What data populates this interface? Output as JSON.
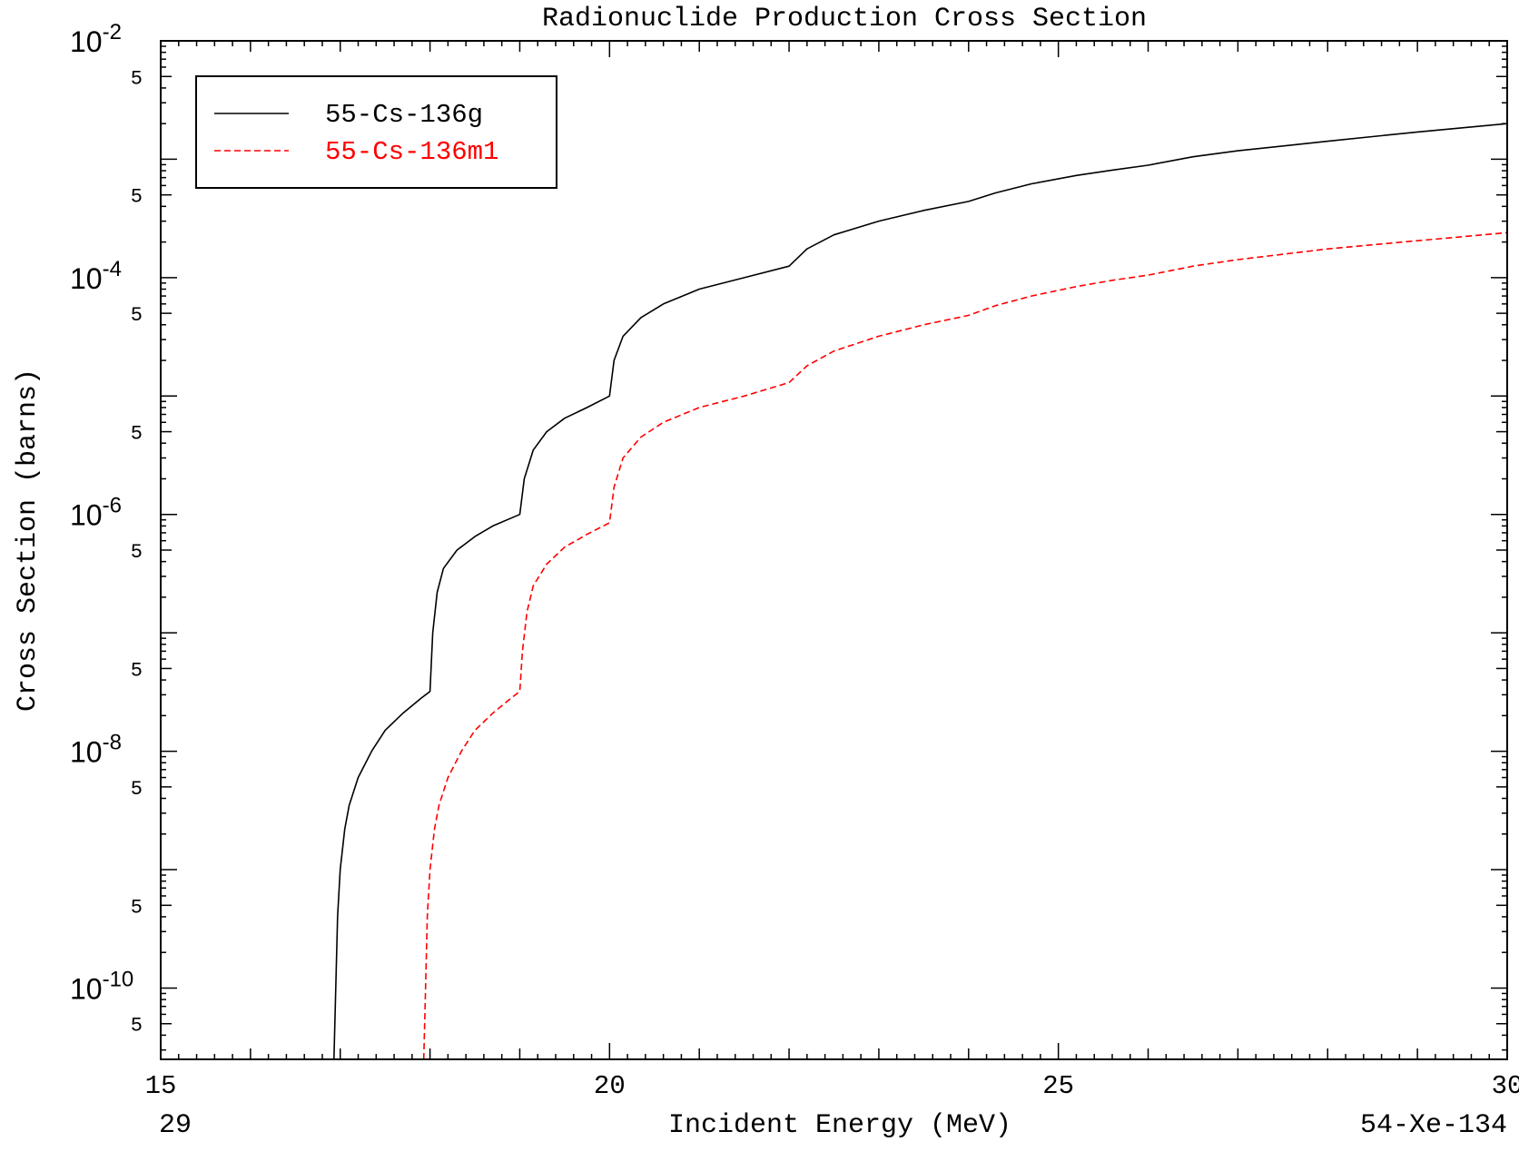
{
  "chart_data": {
    "type": "line",
    "title": "Radionuclide Production Cross Section",
    "xlabel": "Incident Energy (MeV)",
    "ylabel": "Cross Section (barns)",
    "footer_left": "29",
    "footer_right": "54-Xe-134",
    "xlim": [
      15,
      30
    ],
    "ylim": [
      2.5e-11,
      0.01
    ],
    "yscale": "log",
    "x_ticks": [
      {
        "value": 15,
        "label": "15"
      },
      {
        "value": 20,
        "label": "20"
      },
      {
        "value": 25,
        "label": "25"
      },
      {
        "value": 30,
        "label": "30"
      }
    ],
    "y_decades": [
      {
        "value": 1e-10,
        "base": "10",
        "exp": "-10"
      },
      {
        "value": 1e-08,
        "base": "10",
        "exp": "-8"
      },
      {
        "value": 1e-06,
        "base": "10",
        "exp": "-6"
      },
      {
        "value": 0.0001,
        "base": "10",
        "exp": "-4"
      },
      {
        "value": 0.01,
        "base": "10",
        "exp": "-2"
      }
    ],
    "y_minor_label": "5",
    "legend": {
      "placement": "top-left"
    },
    "series": [
      {
        "name": "55-Cs-136g",
        "color": "#000000",
        "dash": "solid",
        "points": [
          [
            16.93,
            2.5e-11
          ],
          [
            16.95,
            1e-10
          ],
          [
            16.97,
            4e-10
          ],
          [
            17.0,
            1e-09
          ],
          [
            17.05,
            2.2e-09
          ],
          [
            17.1,
            3.5e-09
          ],
          [
            17.2,
            6e-09
          ],
          [
            17.35,
            1e-08
          ],
          [
            17.5,
            1.5e-08
          ],
          [
            17.7,
            2.1e-08
          ],
          [
            17.9,
            2.8e-08
          ],
          [
            18.0,
            3.2e-08
          ],
          [
            18.03,
            1e-07
          ],
          [
            18.08,
            2.2e-07
          ],
          [
            18.15,
            3.5e-07
          ],
          [
            18.3,
            5e-07
          ],
          [
            18.5,
            6.5e-07
          ],
          [
            18.7,
            8e-07
          ],
          [
            19.0,
            1e-06
          ],
          [
            19.05,
            2e-06
          ],
          [
            19.15,
            3.5e-06
          ],
          [
            19.3,
            5e-06
          ],
          [
            19.5,
            6.5e-06
          ],
          [
            19.75,
            8e-06
          ],
          [
            20.0,
            1e-05
          ],
          [
            20.05,
            2e-05
          ],
          [
            20.15,
            3.2e-05
          ],
          [
            20.35,
            4.6e-05
          ],
          [
            20.6,
            6e-05
          ],
          [
            21.0,
            8e-05
          ],
          [
            21.5,
            0.0001
          ],
          [
            22.0,
            0.000125
          ],
          [
            22.2,
            0.000175
          ],
          [
            22.5,
            0.00023
          ],
          [
            23.0,
            0.0003
          ],
          [
            23.5,
            0.00037
          ],
          [
            24.0,
            0.00044
          ],
          [
            24.3,
            0.00052
          ],
          [
            24.7,
            0.00062
          ],
          [
            25.2,
            0.00073
          ],
          [
            25.6,
            0.00081
          ],
          [
            26.0,
            0.00089
          ],
          [
            26.5,
            0.00105
          ],
          [
            27.0,
            0.00118
          ],
          [
            28.0,
            0.00142
          ],
          [
            29.0,
            0.0017
          ],
          [
            30.0,
            0.002
          ],
          [
            30.0,
            2.5e-11
          ]
        ]
      },
      {
        "name": "55-Cs-136m1",
        "color": "#ff0000",
        "dash": "dashed",
        "points": [
          [
            17.93,
            2.5e-11
          ],
          [
            17.95,
            1e-10
          ],
          [
            17.97,
            4e-10
          ],
          [
            18.0,
            1e-09
          ],
          [
            18.05,
            2.2e-09
          ],
          [
            18.1,
            3.5e-09
          ],
          [
            18.2,
            6e-09
          ],
          [
            18.35,
            1e-08
          ],
          [
            18.5,
            1.5e-08
          ],
          [
            18.7,
            2.1e-08
          ],
          [
            18.9,
            2.8e-08
          ],
          [
            19.0,
            3.2e-08
          ],
          [
            19.03,
            7e-08
          ],
          [
            19.08,
            1.5e-07
          ],
          [
            19.15,
            2.5e-07
          ],
          [
            19.3,
            3.8e-07
          ],
          [
            19.5,
            5.3e-07
          ],
          [
            19.75,
            6.8e-07
          ],
          [
            20.0,
            8.5e-07
          ],
          [
            20.05,
            1.7e-06
          ],
          [
            20.15,
            3e-06
          ],
          [
            20.35,
            4.5e-06
          ],
          [
            20.6,
            6e-06
          ],
          [
            21.0,
            8e-06
          ],
          [
            21.5,
            1e-05
          ],
          [
            22.0,
            1.3e-05
          ],
          [
            22.2,
            1.8e-05
          ],
          [
            22.5,
            2.4e-05
          ],
          [
            23.0,
            3.2e-05
          ],
          [
            23.5,
            4e-05
          ],
          [
            24.0,
            4.8e-05
          ],
          [
            24.3,
            5.8e-05
          ],
          [
            24.7,
            7e-05
          ],
          [
            25.2,
            8.4e-05
          ],
          [
            25.6,
            9.5e-05
          ],
          [
            26.0,
            0.000105
          ],
          [
            26.5,
            0.000125
          ],
          [
            27.0,
            0.000142
          ],
          [
            28.0,
            0.000175
          ],
          [
            29.0,
            0.000205
          ],
          [
            30.0,
            0.00024
          ],
          [
            30.0,
            2.5e-11
          ]
        ]
      }
    ]
  }
}
